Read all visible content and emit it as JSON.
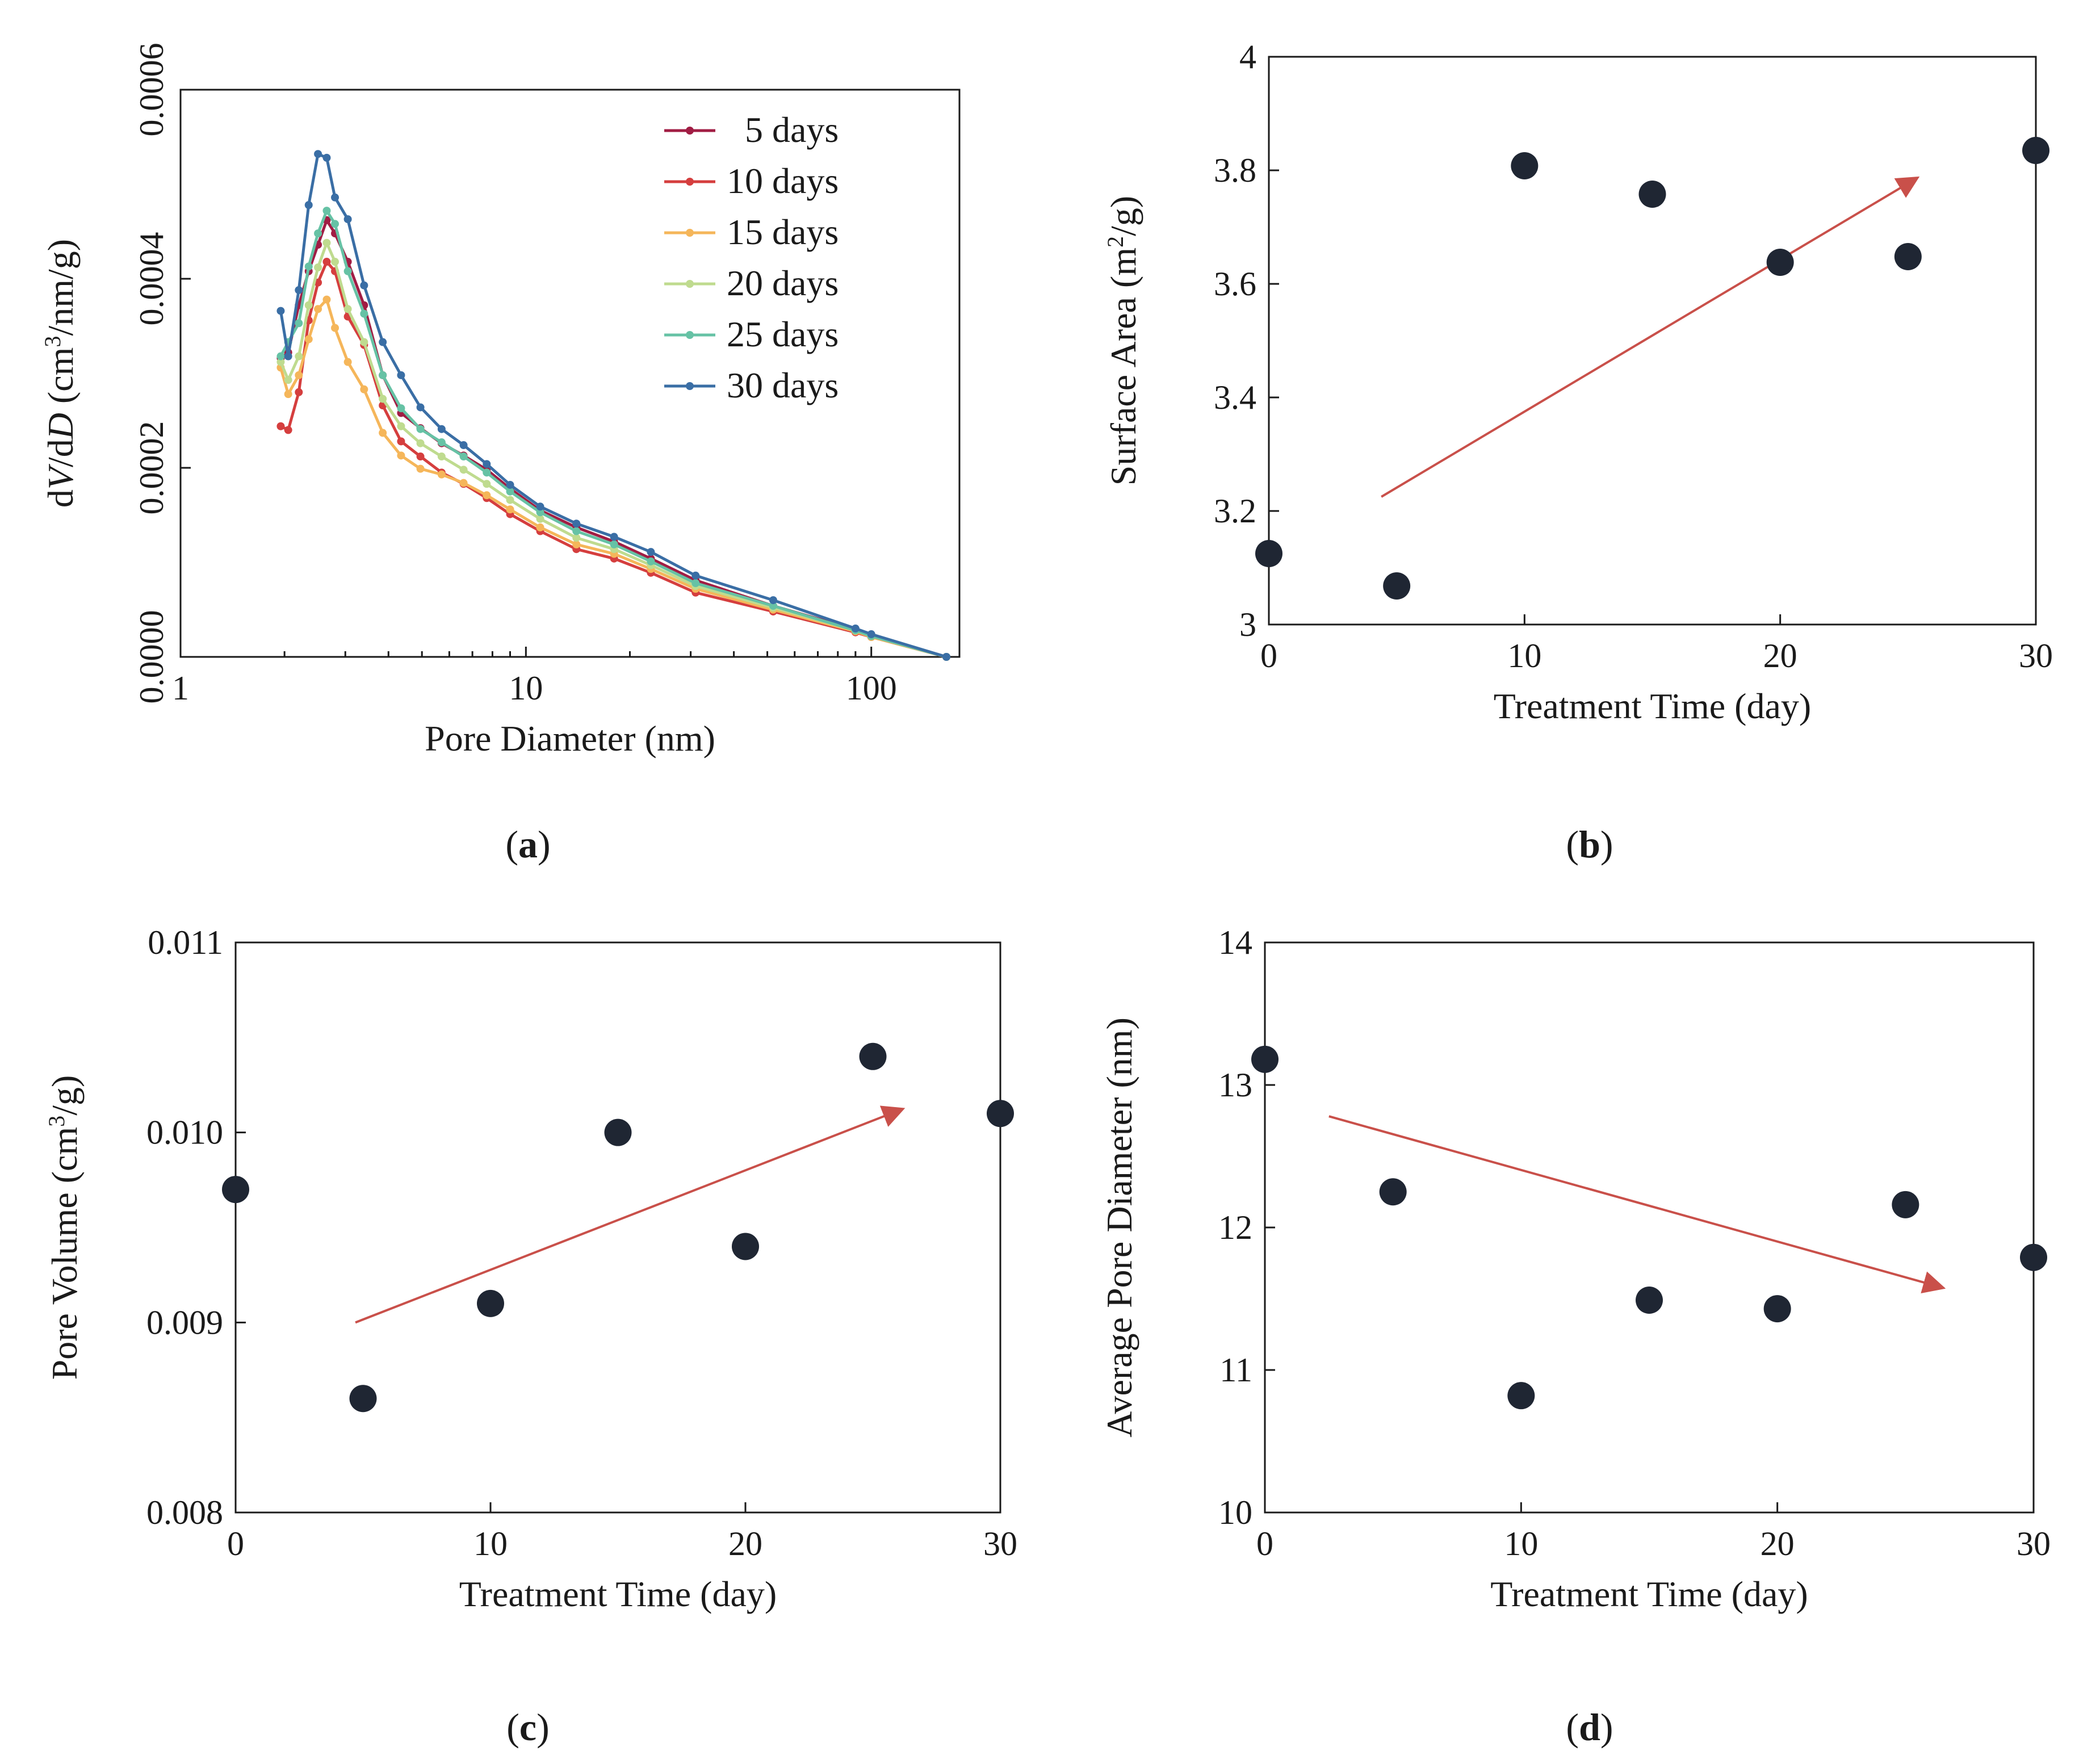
{
  "chart_data": [
    {
      "id": "a",
      "type": "line",
      "panel_label": "a",
      "xlabel": "Pore Diameter (nm)",
      "ylabel_parts": [
        "d",
        "V",
        "/d",
        "D",
        " (cm",
        "3",
        "/nm/g)"
      ],
      "xscale": "log",
      "xlim": [
        1,
        180
      ],
      "ylim": [
        0,
        0.0006
      ],
      "xticks": [
        1,
        10,
        100
      ],
      "xtick_labels": [
        "1",
        "10",
        "100"
      ],
      "yticks": [
        0,
        0.0002,
        0.0004,
        0.0006
      ],
      "ytick_labels": [
        "0.0000",
        "0.0002",
        "0.0004",
        "0.0006"
      ],
      "legend_position": "top-right",
      "x": [
        1.95,
        2.05,
        2.2,
        2.35,
        2.5,
        2.65,
        2.8,
        3.05,
        3.4,
        3.85,
        4.35,
        4.95,
        5.7,
        6.6,
        7.7,
        9.0,
        11.0,
        14.0,
        18.0,
        23.0,
        31.0,
        52.0,
        90.0,
        100.0,
        165.0
      ],
      "series": [
        {
          "name": "5 days",
          "color": "#a11d44",
          "values": [
            0.000316,
            0.000322,
            0.000372,
            0.000408,
            0.000436,
            0.000462,
            0.000448,
            0.000418,
            0.000372,
            0.000298,
            0.000258,
            0.000242,
            0.000226,
            0.000213,
            0.000198,
            0.000178,
            0.000155,
            0.000137,
            0.000122,
            0.000104,
            8.1e-05,
            5.4e-05,
            2.9e-05,
            2.3e-05,
            0.0
          ]
        },
        {
          "name": "10 days",
          "color": "#d53e3e",
          "values": [
            0.000244,
            0.00024,
            0.00028,
            0.000356,
            0.000396,
            0.000418,
            0.000408,
            0.00036,
            0.00033,
            0.000266,
            0.000228,
            0.000212,
            0.000195,
            0.000183,
            0.000168,
            0.000151,
            0.000133,
            0.000114,
            0.000104,
            8.9e-05,
            6.8e-05,
            4.8e-05,
            2.6e-05,
            2.1e-05,
            0.0
          ]
        },
        {
          "name": "15 days",
          "color": "#f5b65a",
          "values": [
            0.000306,
            0.000278,
            0.000298,
            0.000336,
            0.000368,
            0.000378,
            0.000348,
            0.000312,
            0.000283,
            0.000237,
            0.000213,
            0.000199,
            0.000193,
            0.000184,
            0.000171,
            0.000156,
            0.000137,
            0.000119,
            0.000109,
            9.3e-05,
            7.2e-05,
            5e-05,
            2.7e-05,
            2.1e-05,
            0.0
          ]
        },
        {
          "name": "20 days",
          "color": "#bfdb8f",
          "values": [
            0.000312,
            0.000293,
            0.000318,
            0.000372,
            0.000412,
            0.000438,
            0.000418,
            0.000368,
            0.000333,
            0.000273,
            0.000244,
            0.000226,
            0.000212,
            0.000198,
            0.000183,
            0.000166,
            0.000146,
            0.000126,
            0.000114,
            9.7e-05,
            7.5e-05,
            5.2e-05,
            2.8e-05,
            2.2e-05,
            0.0
          ]
        },
        {
          "name": "25 days",
          "color": "#66c2a5",
          "values": [
            0.000318,
            0.000333,
            0.000353,
            0.000413,
            0.000448,
            0.000472,
            0.000458,
            0.000408,
            0.000363,
            0.000298,
            0.000263,
            0.000241,
            0.000227,
            0.000212,
            0.000195,
            0.000175,
            0.000153,
            0.000133,
            0.000119,
            0.000101,
            7.8e-05,
            5.4e-05,
            2.8e-05,
            2.2e-05,
            0.0
          ]
        },
        {
          "name": "30 days",
          "color": "#3a6ea5",
          "values": [
            0.000366,
            0.000318,
            0.000388,
            0.000478,
            0.000532,
            0.000528,
            0.000486,
            0.000463,
            0.000393,
            0.000333,
            0.000298,
            0.000264,
            0.000241,
            0.000224,
            0.000204,
            0.000182,
            0.000159,
            0.000141,
            0.000127,
            0.000111,
            8.6e-05,
            6e-05,
            3e-05,
            2.4e-05,
            0.0
          ]
        }
      ]
    },
    {
      "id": "b",
      "type": "scatter",
      "panel_label": "b",
      "xlabel": "Treatment Time (day)",
      "ylabel_parts": [
        "Surface Area (m",
        "2",
        "/g)"
      ],
      "xlim": [
        0,
        30
      ],
      "ylim": [
        3.0,
        4.0
      ],
      "xticks": [
        0,
        10,
        20,
        30
      ],
      "xtick_labels": [
        "0",
        "10",
        "20",
        "30"
      ],
      "yticks": [
        3.0,
        3.2,
        3.4,
        3.6,
        3.8,
        4.0
      ],
      "ytick_labels": [
        "3",
        "3.2",
        "3.4",
        "3.6",
        "3.8",
        "4"
      ],
      "x": [
        0,
        5,
        10,
        15,
        20,
        25,
        30
      ],
      "y": [
        3.125,
        3.068,
        3.808,
        3.758,
        3.638,
        3.648,
        3.835
      ],
      "trend_arrow": {
        "from": [
          4.4,
          3.225
        ],
        "to": [
          25.3,
          3.785
        ],
        "color": "#c9504a"
      }
    },
    {
      "id": "c",
      "type": "scatter",
      "panel_label": "c",
      "xlabel": "Treatment Time (day)",
      "ylabel_parts": [
        "Pore Volume (cm",
        "3",
        "/g)"
      ],
      "xlim": [
        0,
        30
      ],
      "ylim": [
        0.008,
        0.011
      ],
      "xticks": [
        0,
        10,
        20,
        30
      ],
      "xtick_labels": [
        "0",
        "10",
        "20",
        "30"
      ],
      "yticks": [
        0.008,
        0.009,
        0.01,
        0.011
      ],
      "ytick_labels": [
        "0.008",
        "0.009",
        "0.010",
        "0.011"
      ],
      "x": [
        0,
        5,
        10,
        15,
        20,
        25,
        30
      ],
      "y": [
        0.0097,
        0.0086,
        0.0091,
        0.01,
        0.0094,
        0.0104,
        0.0101
      ],
      "trend_arrow": {
        "from": [
          4.7,
          0.009
        ],
        "to": [
          26.1,
          0.01012
        ],
        "color": "#c9504a"
      }
    },
    {
      "id": "d",
      "type": "scatter",
      "panel_label": "d",
      "xlabel": "Treatment Time (day)",
      "ylabel_parts": [
        "Average Pore Diameter (nm)"
      ],
      "xlim": [
        0,
        30
      ],
      "ylim": [
        10,
        14
      ],
      "xticks": [
        0,
        10,
        20,
        30
      ],
      "xtick_labels": [
        "0",
        "10",
        "20",
        "30"
      ],
      "yticks": [
        10,
        11,
        12,
        13,
        14
      ],
      "ytick_labels": [
        "10",
        "11",
        "12",
        "13",
        "14"
      ],
      "x": [
        0,
        5,
        10,
        15,
        20,
        25,
        30
      ],
      "y": [
        13.18,
        12.25,
        10.82,
        11.49,
        11.43,
        12.16,
        11.79
      ],
      "trend_arrow": {
        "from": [
          2.5,
          12.78
        ],
        "to": [
          26.4,
          11.58
        ],
        "color": "#c9504a"
      }
    }
  ]
}
